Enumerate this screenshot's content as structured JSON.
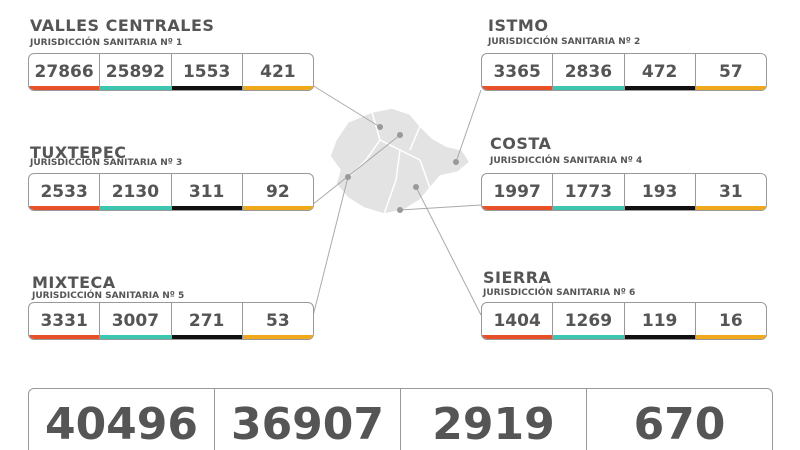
{
  "regions": [
    {
      "name": "VALLES CENTRALES",
      "subtitle": "JURISDICCIÓN SANITARIA Nº 1",
      "values": [
        27866,
        25892,
        1553,
        421
      ]
    },
    {
      "name": "ISTMO",
      "subtitle": "JURISDICCIÓN SANITARIA Nº 2",
      "values": [
        3365,
        2836,
        472,
        57
      ]
    },
    {
      "name": "TUXTEPEC",
      "subtitle": "JURISDICCIÓN SANITARIA Nº 3",
      "values": [
        2533,
        2130,
        311,
        92
      ]
    },
    {
      "name": "COSTA",
      "subtitle": "JURISDICCIÓN SANITARIA Nº 4",
      "values": [
        1997,
        1773,
        193,
        31
      ]
    },
    {
      "name": "MIXTECA",
      "subtitle": "JURISDICCIÓN SANITARIA Nº 5",
      "values": [
        3331,
        3007,
        271,
        53
      ]
    },
    {
      "name": "SIERRA",
      "subtitle": "JURISDICCIÓN SANITARIA Nº 6",
      "values": [
        1404,
        1269,
        119,
        16
      ]
    }
  ],
  "totals": [
    40496,
    36907,
    2919,
    670
  ]
}
